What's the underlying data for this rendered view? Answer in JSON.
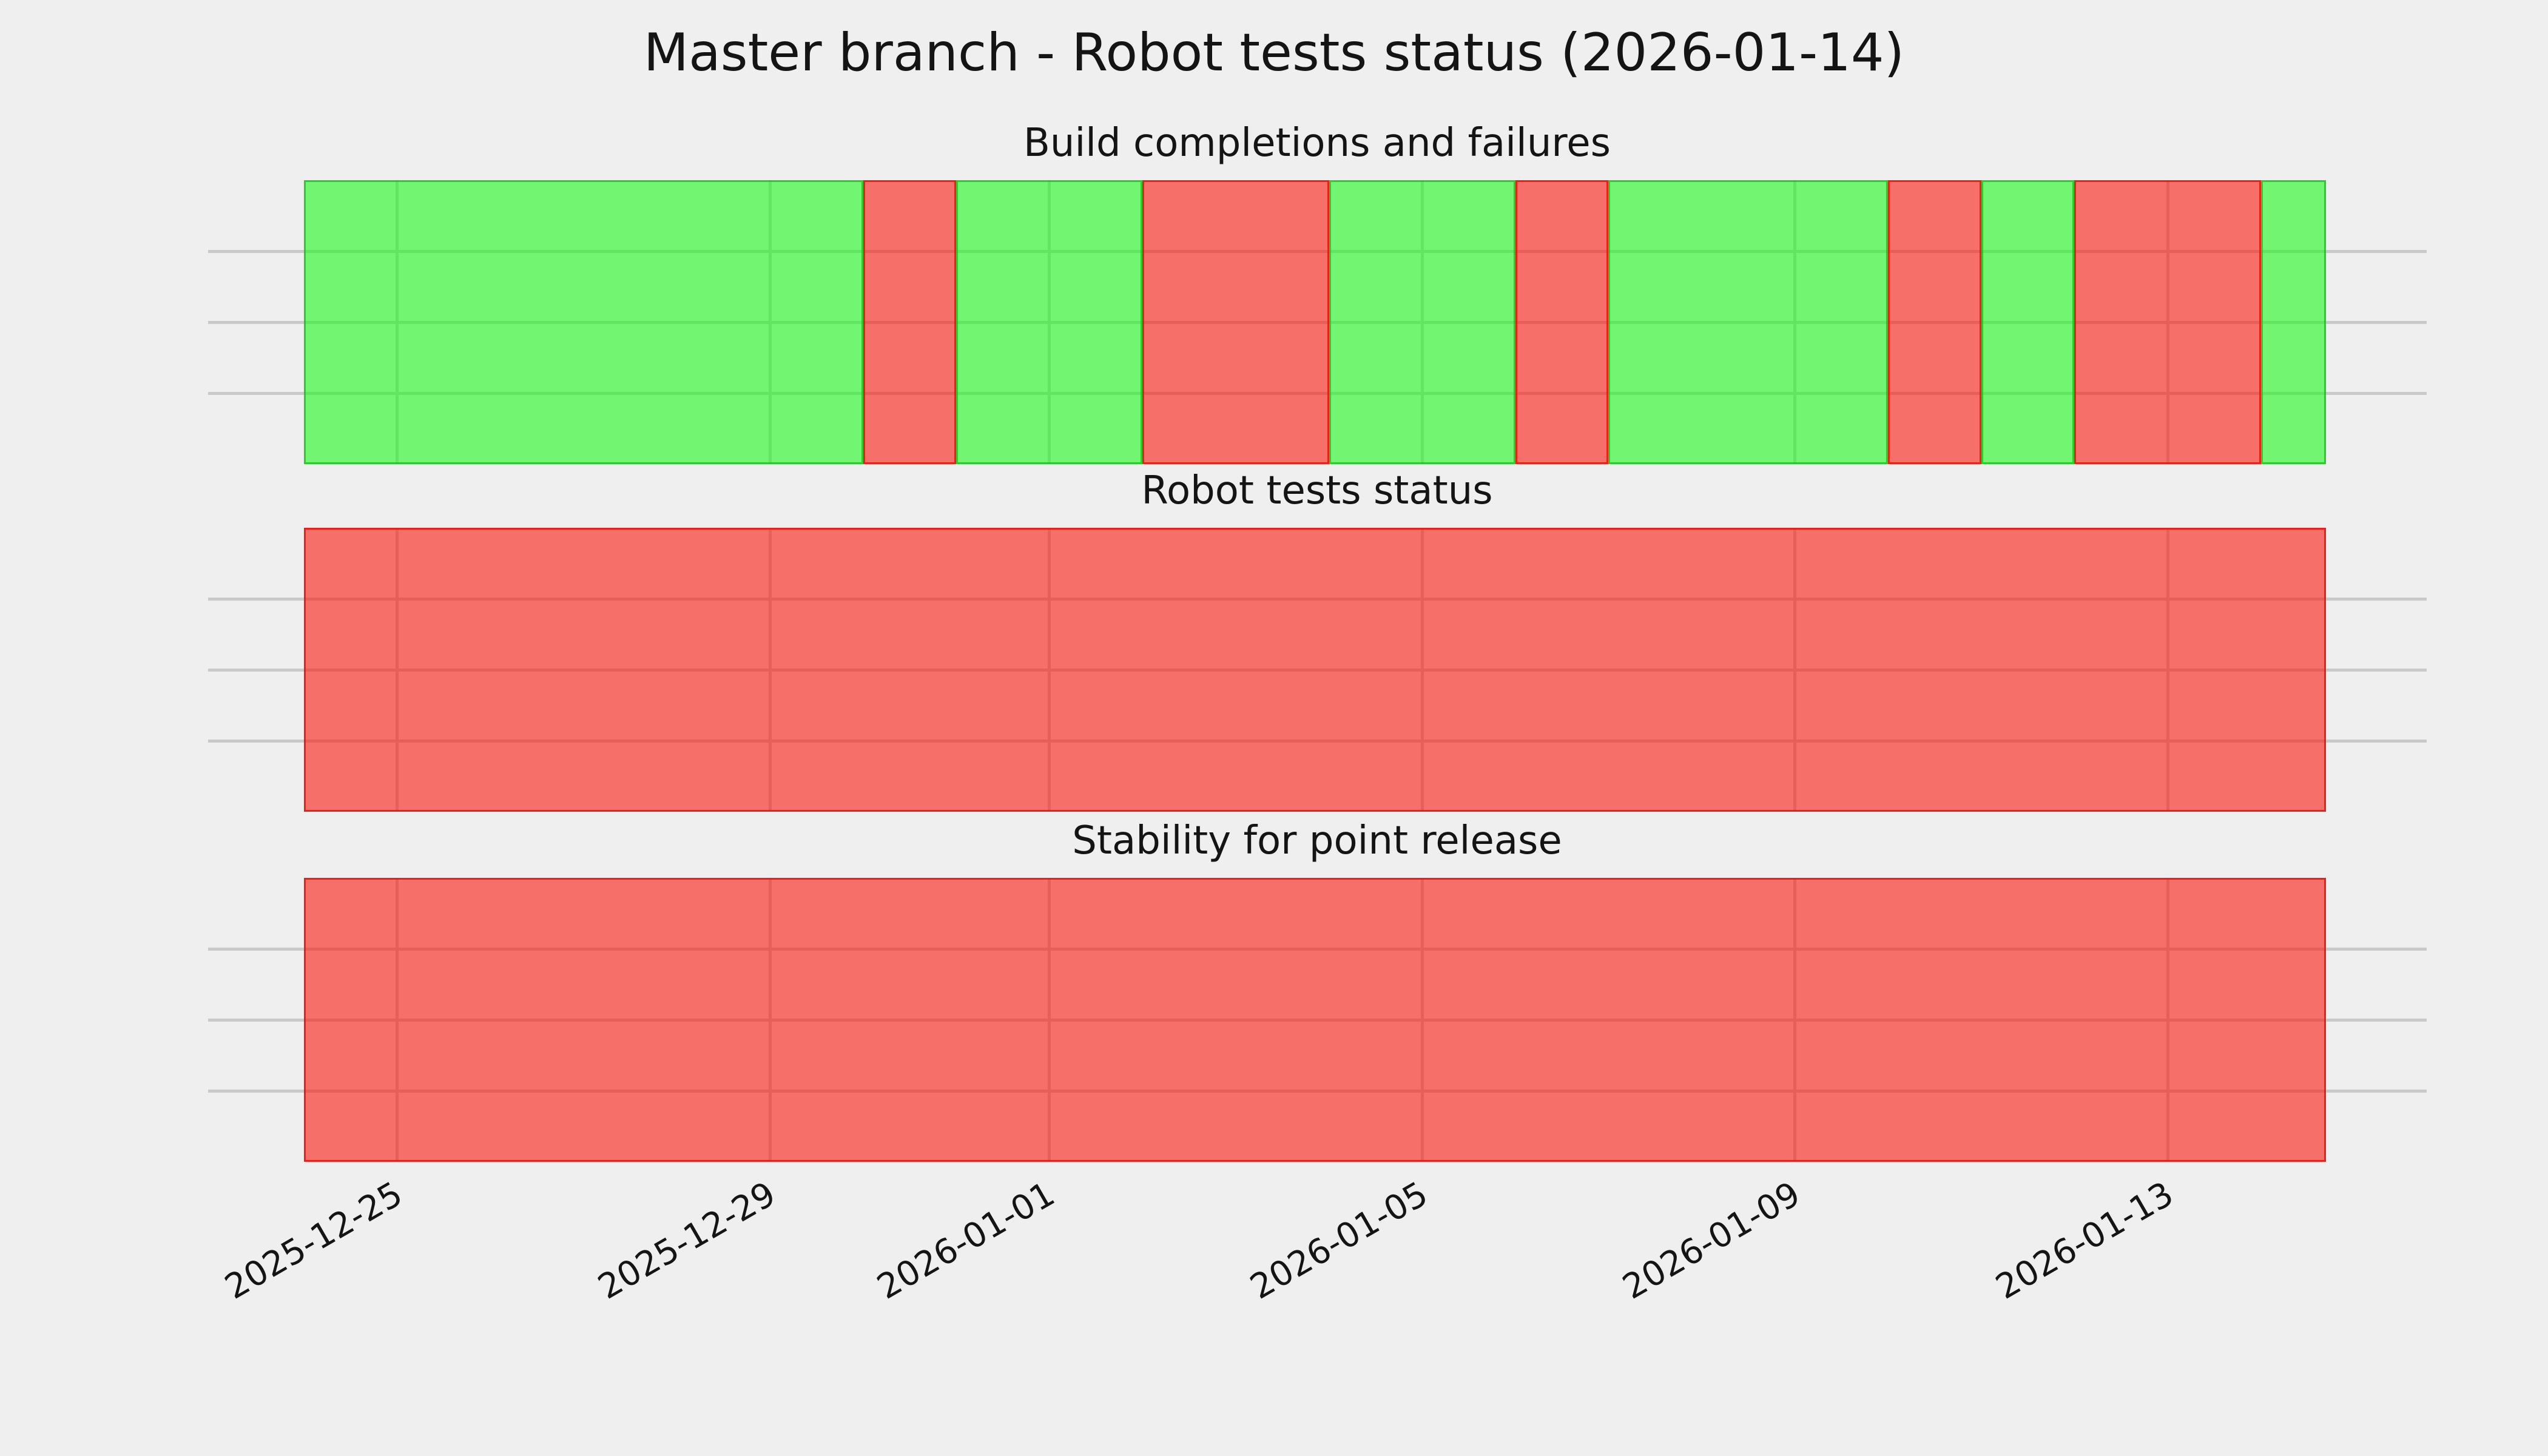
{
  "figure": {
    "title": "Master branch - Robot tests status (2026-01-14)"
  },
  "chart_data": {
    "type": "bar",
    "subtype": "daily-status-timeline",
    "title": "Master branch - Robot tests status (2026-01-14)",
    "grid": true,
    "legend": "none",
    "ylim": [
      0,
      1
    ],
    "ytick_positions": [
      0.25,
      0.5,
      0.75
    ],
    "ytick_labels": [],
    "x_tick_labels": [
      "2025-12-25",
      "2025-12-29",
      "2026-01-01",
      "2026-01-05",
      "2026-01-09",
      "2026-01-13"
    ],
    "days": [
      "2025-12-24",
      "2025-12-25",
      "2025-12-26",
      "2025-12-27",
      "2025-12-28",
      "2025-12-29",
      "2025-12-30",
      "2025-12-31",
      "2026-01-01",
      "2026-01-02",
      "2026-01-03",
      "2026-01-04",
      "2026-01-05",
      "2026-01-06",
      "2026-01-07",
      "2026-01-08",
      "2026-01-09",
      "2026-01-10",
      "2026-01-11",
      "2026-01-12",
      "2026-01-13",
      "2026-01-14"
    ],
    "last_day_fraction": 0.7,
    "subplots": [
      {
        "title": "Build completions and failures",
        "statuses": [
          "pass",
          "pass",
          "pass",
          "pass",
          "pass",
          "pass",
          "fail",
          "pass",
          "pass",
          "fail",
          "fail",
          "pass",
          "pass",
          "fail",
          "pass",
          "pass",
          "pass",
          "fail",
          "pass",
          "fail",
          "fail",
          "pass"
        ]
      },
      {
        "title": "Robot tests status",
        "statuses": [
          "fail",
          "fail",
          "fail",
          "fail",
          "fail",
          "fail",
          "fail",
          "fail",
          "fail",
          "fail",
          "fail",
          "fail",
          "fail",
          "fail",
          "fail",
          "fail",
          "fail",
          "fail",
          "fail",
          "fail",
          "fail",
          "fail"
        ]
      },
      {
        "title": "Stability for point release",
        "statuses": [
          "fail",
          "fail",
          "fail",
          "fail",
          "fail",
          "fail",
          "fail",
          "fail",
          "fail",
          "fail",
          "fail",
          "fail",
          "fail",
          "fail",
          "fail",
          "fail",
          "fail",
          "fail",
          "fail",
          "fail",
          "fail",
          "fail"
        ]
      }
    ],
    "colors": {
      "background": "#efefef",
      "grid": "#c9c9c9",
      "text": "#141414",
      "pass_fill": "rgba(30,250,30,0.60)",
      "pass_edge": "rgba(20,190,20,0.75)",
      "fail_fill": "rgba(250,25,15,0.60)",
      "fail_edge": "rgba(230,20,10,0.85)",
      "pass_hex_solid": "#70f36f",
      "fail_hex_solid": "#f4716b"
    },
    "status_legend": {
      "pass": "green (ok)",
      "fail": "red (failing)"
    }
  }
}
